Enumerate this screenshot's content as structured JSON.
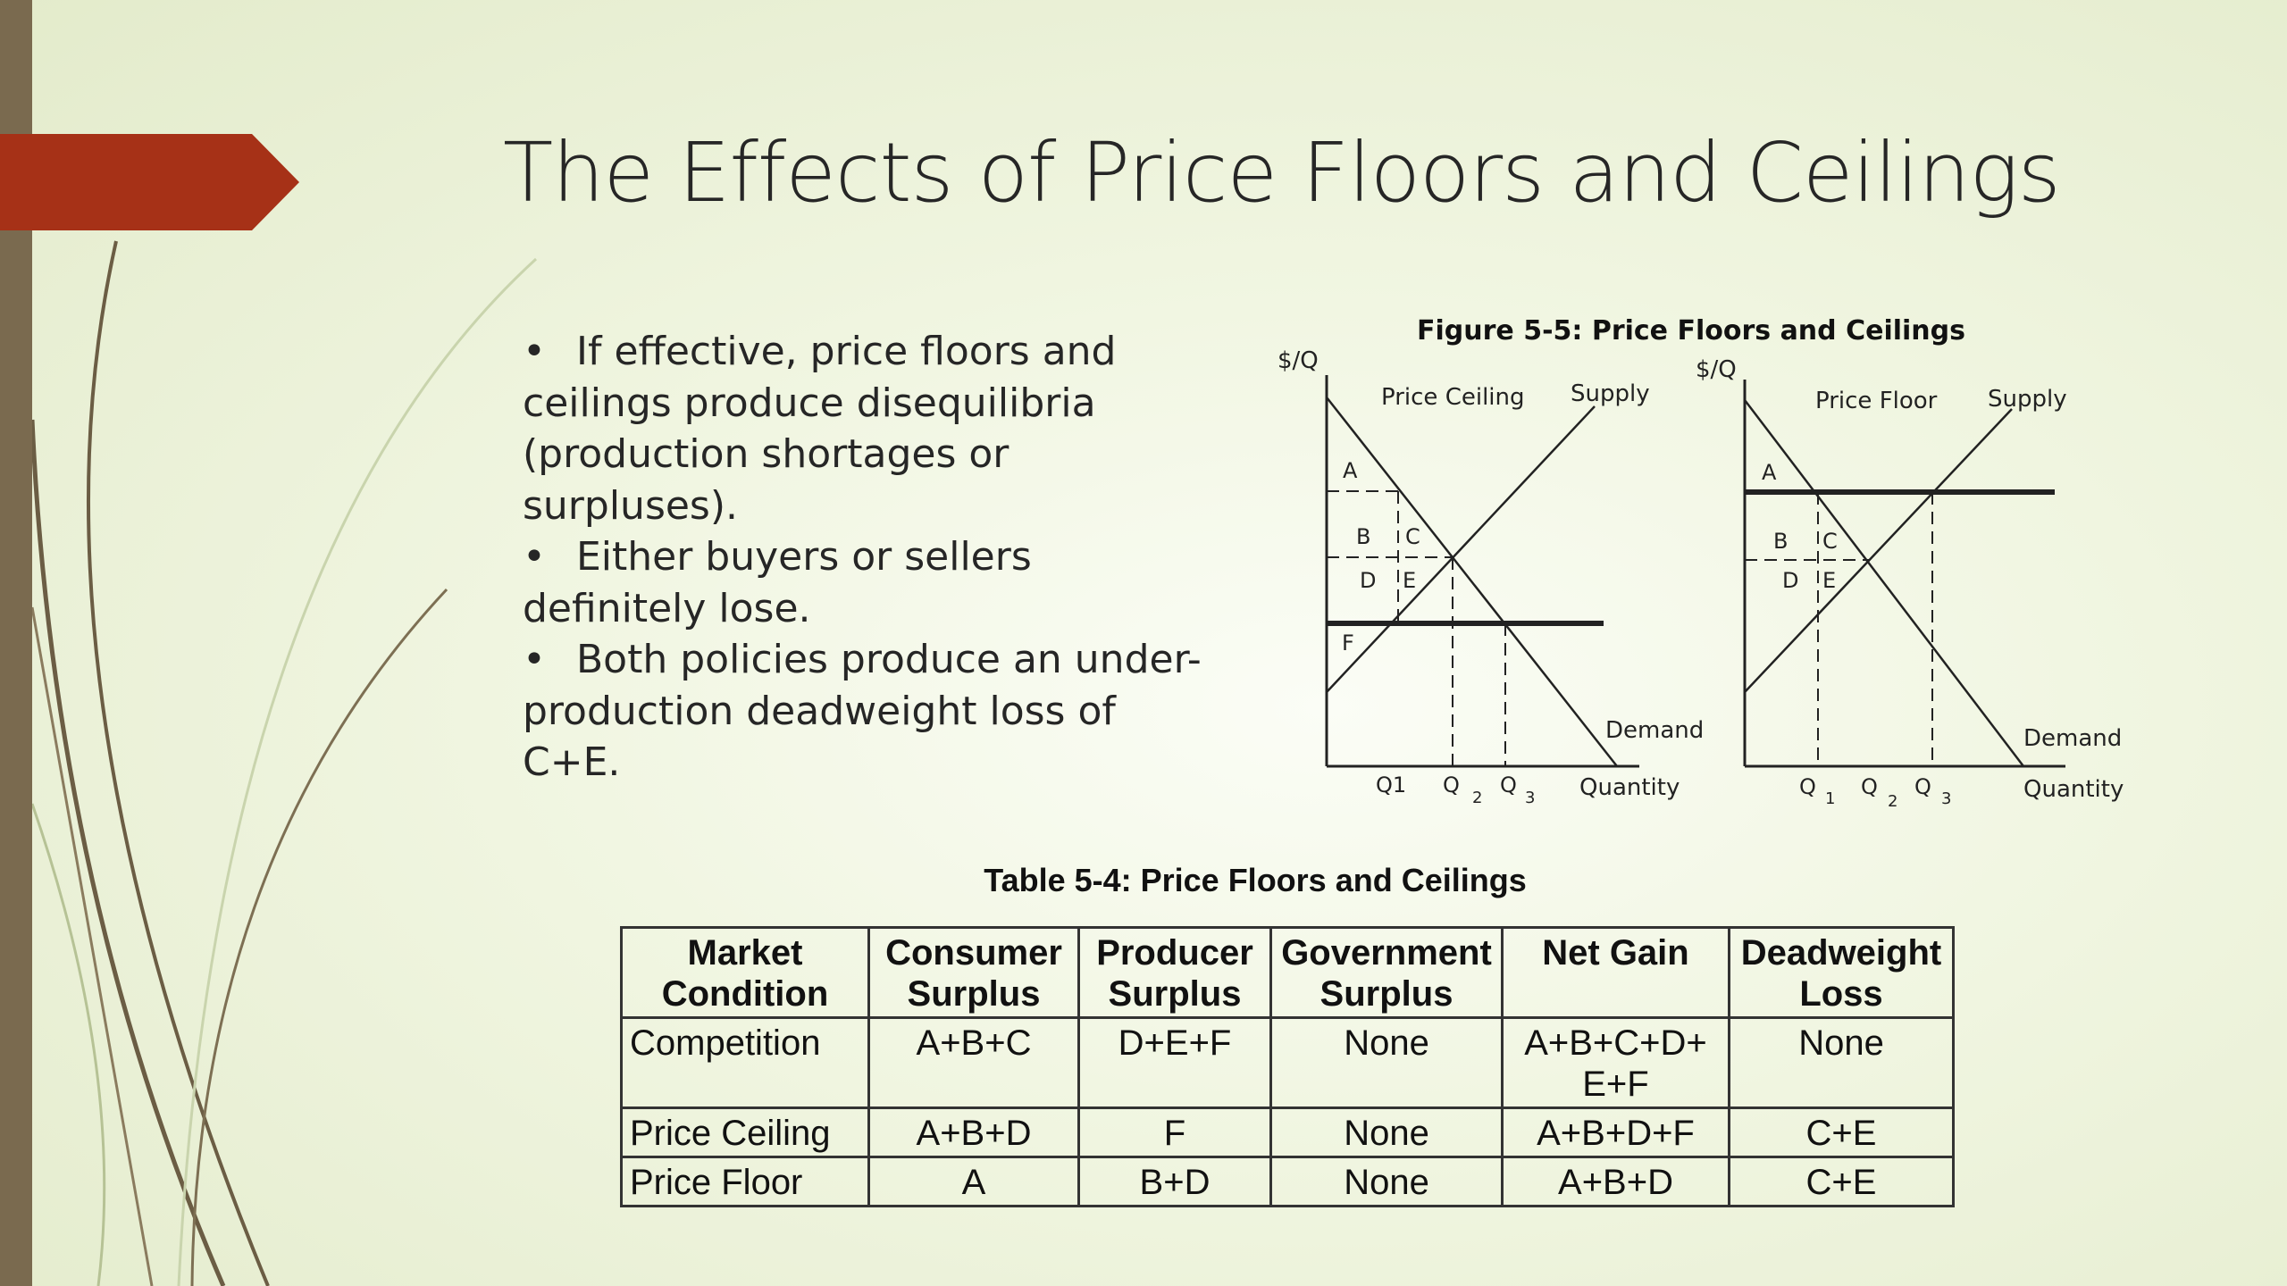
{
  "slide": {
    "title": "The Effects of Price Floors and Ceilings",
    "bullets": [
      "If effective, price floors and ceilings produce disequilibria (production shortages or surpluses).",
      "Either buyers or sellers definitely lose.",
      "Both policies produce an under-production deadweight loss of C+E."
    ],
    "accent_color": "#a63117",
    "sidebar_color": "#7a6a4f"
  },
  "figure": {
    "title": "Figure 5-5: Price Floors and Ceilings",
    "ceiling_panel": {
      "y_axis": "$/Q",
      "x_axis": "Quantity",
      "control_label": "Price Ceiling",
      "supply_label": "Supply",
      "demand_label": "Demand",
      "area_labels": [
        "A",
        "B",
        "C",
        "D",
        "E",
        "F"
      ],
      "q_labels": [
        "Q1",
        "Q",
        "2",
        "Q",
        "3"
      ]
    },
    "floor_panel": {
      "y_axis": "$/Q",
      "x_axis": "Quantity",
      "control_label": "Price Floor",
      "supply_label": "Supply",
      "demand_label": "Demand",
      "area_labels": [
        "A",
        "B",
        "C",
        "D",
        "E"
      ],
      "q_labels": [
        "Q",
        "1",
        "Q",
        "2",
        "Q",
        "3"
      ]
    }
  },
  "table": {
    "title": "Table 5-4: Price Floors and Ceilings",
    "headers": [
      [
        "Market",
        "Condition"
      ],
      [
        "Consumer",
        "Surplus"
      ],
      [
        "Producer",
        "Surplus"
      ],
      [
        "Government",
        "Surplus"
      ],
      [
        "Net Gain",
        ""
      ],
      [
        "Deadweight",
        "Loss"
      ]
    ],
    "rows": [
      {
        "condition": "Competition",
        "consumer": "A+B+C",
        "producer": "D+E+F",
        "government": "None",
        "net_gain_1": "A+B+C+D+",
        "net_gain_2": "E+F",
        "deadweight": "None"
      },
      {
        "condition": "Price Ceiling",
        "consumer": "A+B+D",
        "producer": "F",
        "government": "None",
        "net_gain_1": "A+B+D+F",
        "net_gain_2": "",
        "deadweight": "C+E"
      },
      {
        "condition": "Price Floor",
        "consumer": "A",
        "producer": "B+D",
        "government": "None",
        "net_gain_1": "A+B+D",
        "net_gain_2": "",
        "deadweight": "C+E"
      }
    ]
  }
}
